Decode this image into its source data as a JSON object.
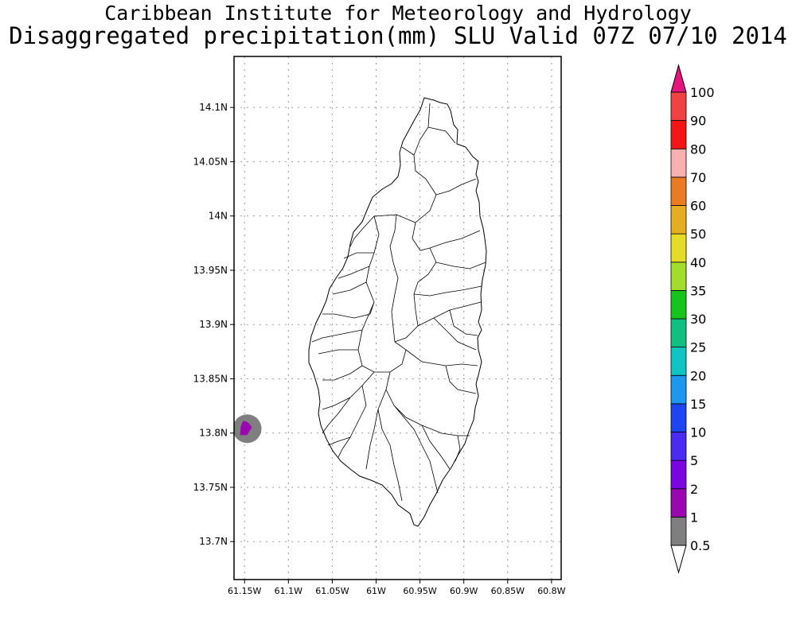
{
  "header": {
    "title": "Caribbean Institute for Meteorology and Hydrology",
    "subtitle": "Disaggregated precipitation(mm) SLU Valid 07Z 07/10 2014"
  },
  "axes": {
    "lon_ticks": [
      "61.15W",
      "61.1W",
      "61.05W",
      "61W",
      "60.95W",
      "60.9W",
      "60.85W",
      "60.8W"
    ],
    "lon_values": [
      -61.15,
      -61.1,
      -61.05,
      -61.0,
      -60.95,
      -60.9,
      -60.85,
      -60.8
    ],
    "lat_ticks": [
      "14.1N",
      "14.05N",
      "14N",
      "13.95N",
      "13.9N",
      "13.85N",
      "13.8N",
      "13.75N",
      "13.7N"
    ],
    "lat_values": [
      14.1,
      14.05,
      14.0,
      13.95,
      13.9,
      13.85,
      13.8,
      13.75,
      13.7
    ],
    "lon_range": [
      -61.162,
      -60.789
    ],
    "lat_range": [
      13.665,
      14.147
    ]
  },
  "precip_feature": {
    "center_lon": -61.147,
    "center_lat": 13.804,
    "outer_level": "0.5-1",
    "inner_level": "1-2"
  },
  "colorbar": {
    "levels": [
      {
        "label": "0.5",
        "color": "#ffffff"
      },
      {
        "label": "1",
        "color": "#7f7f7f"
      },
      {
        "label": "2",
        "color": "#9a06b0"
      },
      {
        "label": "5",
        "color": "#7a05e0"
      },
      {
        "label": "10",
        "color": "#4a2bef"
      },
      {
        "label": "15",
        "color": "#1d45f0"
      },
      {
        "label": "20",
        "color": "#1c98f0"
      },
      {
        "label": "25",
        "color": "#10c4c4"
      },
      {
        "label": "30",
        "color": "#11c080"
      },
      {
        "label": "35",
        "color": "#16c41c"
      },
      {
        "label": "40",
        "color": "#a2dc2c"
      },
      {
        "label": "50",
        "color": "#e5dc2a"
      },
      {
        "label": "60",
        "color": "#e5ad22"
      },
      {
        "label": "70",
        "color": "#eb7b22"
      },
      {
        "label": "80",
        "color": "#fbb0b0"
      },
      {
        "label": "90",
        "color": "#f21616"
      },
      {
        "label": "100",
        "color": "#f04242"
      }
    ],
    "top_color": "#e6157e"
  }
}
